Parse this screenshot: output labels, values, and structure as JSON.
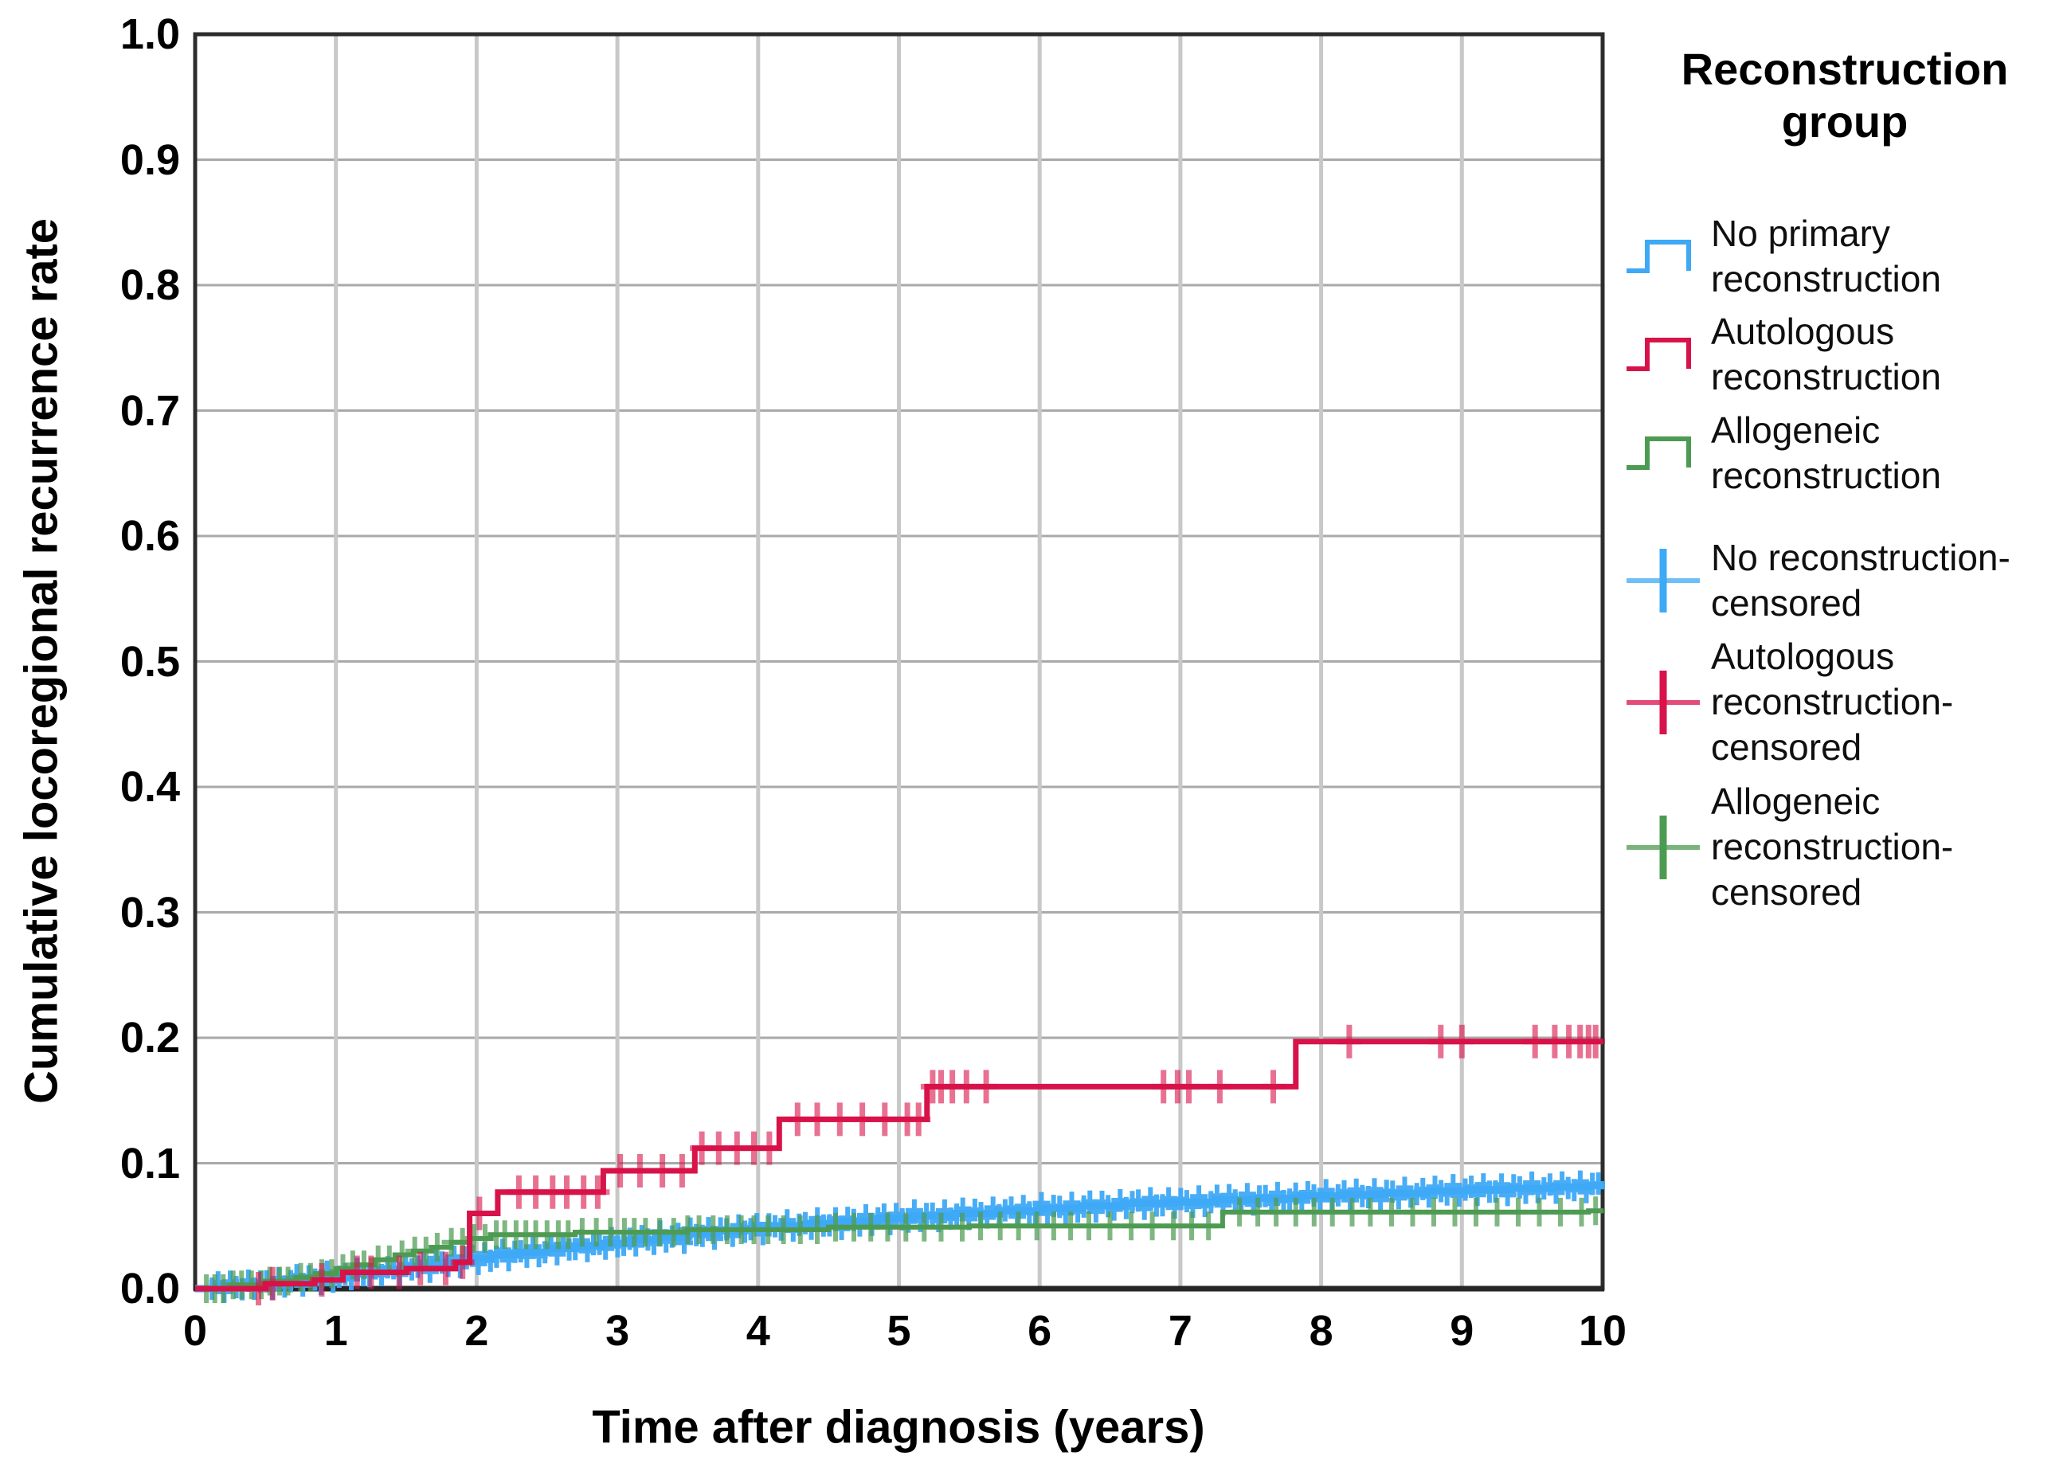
{
  "chart_data": {
    "type": "line",
    "variant": "kaplan_meier_cumulative_incidence_step_curves",
    "title": "",
    "xlabel": "Time after diagnosis (years)",
    "ylabel": "Cumulative locoregional recurrence rate",
    "xlim": [
      0,
      10
    ],
    "ylim": [
      0.0,
      1.0
    ],
    "grid": true,
    "legend_position": "right",
    "legend_title": "Reconstruction group",
    "xticks": {
      "values": [
        0,
        1,
        2,
        3,
        4,
        5,
        6,
        7,
        8,
        9,
        10
      ],
      "labels": [
        "0",
        "1",
        "2",
        "3",
        "4",
        "5",
        "6",
        "7",
        "8",
        "9",
        "10"
      ]
    },
    "yticks": {
      "values": [
        0.0,
        0.1,
        0.2,
        0.3,
        0.4,
        0.5,
        0.6,
        0.7,
        0.8,
        0.9,
        1.0
      ],
      "labels": [
        "0.0",
        "0.1",
        "0.2",
        "0.3",
        "0.4",
        "0.5",
        "0.6",
        "0.7",
        "0.8",
        "0.9",
        "1.0"
      ]
    },
    "series": [
      {
        "id": "no_reconstruction",
        "name": "No primary reconstruction",
        "color": "#3EA9F5",
        "step_points": [
          [
            0,
            0
          ],
          [
            0.15,
            0.002
          ],
          [
            0.4,
            0.004
          ],
          [
            0.65,
            0.007
          ],
          [
            0.9,
            0.009
          ],
          [
            1.1,
            0.012
          ],
          [
            1.3,
            0.015
          ],
          [
            1.5,
            0.018
          ],
          [
            1.7,
            0.021
          ],
          [
            1.9,
            0.024
          ],
          [
            2.1,
            0.027
          ],
          [
            2.3,
            0.029
          ],
          [
            2.5,
            0.032
          ],
          [
            2.7,
            0.034
          ],
          [
            2.9,
            0.036
          ],
          [
            3.1,
            0.039
          ],
          [
            3.3,
            0.041
          ],
          [
            3.5,
            0.044
          ],
          [
            3.7,
            0.046
          ],
          [
            3.9,
            0.048
          ],
          [
            4.1,
            0.05
          ],
          [
            4.35,
            0.052
          ],
          [
            4.6,
            0.054
          ],
          [
            4.85,
            0.056
          ],
          [
            5.1,
            0.058
          ],
          [
            5.4,
            0.06
          ],
          [
            5.7,
            0.062
          ],
          [
            6.0,
            0.064
          ],
          [
            6.3,
            0.066
          ],
          [
            6.6,
            0.068
          ],
          [
            6.95,
            0.069
          ],
          [
            7.25,
            0.071
          ],
          [
            7.55,
            0.072
          ],
          [
            7.85,
            0.074
          ],
          [
            8.15,
            0.075
          ],
          [
            8.45,
            0.076
          ],
          [
            8.75,
            0.078
          ],
          [
            9.05,
            0.079
          ],
          [
            9.35,
            0.08
          ],
          [
            9.65,
            0.081
          ],
          [
            9.9,
            0.082
          ],
          [
            10,
            0.083
          ]
        ],
        "censored_name": "No reconstruction-censored",
        "censored_band": {
          "start": 0.12,
          "end": 9.97,
          "count": 230
        }
      },
      {
        "id": "autologous",
        "name": "Autologous reconstruction",
        "color": "#D8134A",
        "step_points": [
          [
            0,
            0
          ],
          [
            0.5,
            0.004
          ],
          [
            0.85,
            0.007
          ],
          [
            1.05,
            0.013
          ],
          [
            1.5,
            0.016
          ],
          [
            1.85,
            0.021
          ],
          [
            1.95,
            0.06
          ],
          [
            2.15,
            0.077
          ],
          [
            2.9,
            0.094
          ],
          [
            3.55,
            0.112
          ],
          [
            4.15,
            0.135
          ],
          [
            5.2,
            0.161
          ],
          [
            7.82,
            0.197
          ],
          [
            10,
            0.197
          ]
        ],
        "censored_name": "Autologous reconstruction-censored",
        "censored_times": [
          0.45,
          0.55,
          0.9,
          1.15,
          1.25,
          1.45,
          1.6,
          1.78,
          1.9,
          2.02,
          2.3,
          2.42,
          2.54,
          2.64,
          2.76,
          2.86,
          3.02,
          3.16,
          3.32,
          3.46,
          3.6,
          3.72,
          3.85,
          3.97,
          4.08,
          4.28,
          4.42,
          4.58,
          4.74,
          4.9,
          5.06,
          5.14,
          5.24,
          5.3,
          5.38,
          5.48,
          5.62,
          6.88,
          6.98,
          7.06,
          7.28,
          7.66,
          8.2,
          8.85,
          9.0,
          9.52,
          9.66,
          9.76,
          9.84,
          9.9,
          9.95
        ]
      },
      {
        "id": "allogeneic",
        "name": "Allogeneic reconstruction",
        "color": "#4D9B52",
        "step_points": [
          [
            0,
            0
          ],
          [
            0.25,
            0.003
          ],
          [
            0.5,
            0.006
          ],
          [
            0.72,
            0.009
          ],
          [
            0.85,
            0.012
          ],
          [
            1.0,
            0.016
          ],
          [
            1.12,
            0.019
          ],
          [
            1.28,
            0.023
          ],
          [
            1.42,
            0.027
          ],
          [
            1.55,
            0.03
          ],
          [
            1.68,
            0.033
          ],
          [
            1.82,
            0.037
          ],
          [
            1.95,
            0.04
          ],
          [
            2.1,
            0.043
          ],
          [
            2.7,
            0.045
          ],
          [
            3.5,
            0.047
          ],
          [
            4.5,
            0.049
          ],
          [
            5.5,
            0.05
          ],
          [
            7.3,
            0.061
          ],
          [
            9.9,
            0.062
          ],
          [
            10,
            0.062
          ]
        ],
        "censored_name": "Allogeneic reconstruction-censored",
        "censored_times": [
          0.08,
          0.14,
          0.2,
          0.27,
          0.33,
          0.4,
          0.47,
          0.53,
          0.6,
          0.66,
          0.75,
          0.82,
          0.9,
          0.97,
          1.05,
          1.12,
          1.2,
          1.3,
          1.38,
          1.47,
          1.56,
          1.64,
          1.72,
          1.82,
          1.9,
          1.98,
          2.06,
          2.14,
          2.2,
          2.28,
          2.35,
          2.42,
          2.5,
          2.58,
          2.65,
          2.75,
          2.85,
          2.95,
          3.05,
          3.12,
          3.2,
          3.3,
          3.4,
          3.5,
          3.58,
          3.68,
          3.78,
          3.88,
          3.97,
          4.07,
          4.18,
          4.3,
          4.42,
          4.55,
          4.68,
          4.8,
          4.92,
          5.05,
          5.18,
          5.3,
          5.45,
          5.58,
          5.72,
          5.85,
          5.98,
          6.1,
          6.22,
          6.35,
          6.5,
          6.65,
          6.8,
          6.95,
          7.08,
          7.2,
          7.42,
          7.55,
          7.68,
          7.82,
          7.95,
          8.08,
          8.22,
          8.35,
          8.5,
          8.65,
          8.8,
          8.95,
          9.1,
          9.25,
          9.4,
          9.55,
          9.7,
          9.85,
          9.95
        ]
      }
    ]
  },
  "legend": {
    "title": "Reconstruction group",
    "items": [
      {
        "label": "No primary\nreconstruction",
        "swatch": "line",
        "color": "#3EA9F5"
      },
      {
        "label": "Autologous\nreconstruction",
        "swatch": "line",
        "color": "#D8134A"
      },
      {
        "label": "Allogeneic\nreconstruction",
        "swatch": "line",
        "color": "#4D9B52"
      },
      {
        "label": "No reconstruction-\ncensored",
        "swatch": "plus",
        "color": "#3EA9F5"
      },
      {
        "label": "Autologous\nreconstruction-\ncensored",
        "swatch": "plus",
        "color": "#D8134A"
      },
      {
        "label": "Allogeneic\nreconstruction-\ncensored",
        "swatch": "plus",
        "color": "#4D9B52"
      }
    ]
  },
  "style_colors": {
    "grid_horizontal": "#A9A9A9",
    "grid_vertical": "#C8C8C8",
    "frame": "#2D2D2D",
    "background": "#FFFFFF"
  }
}
